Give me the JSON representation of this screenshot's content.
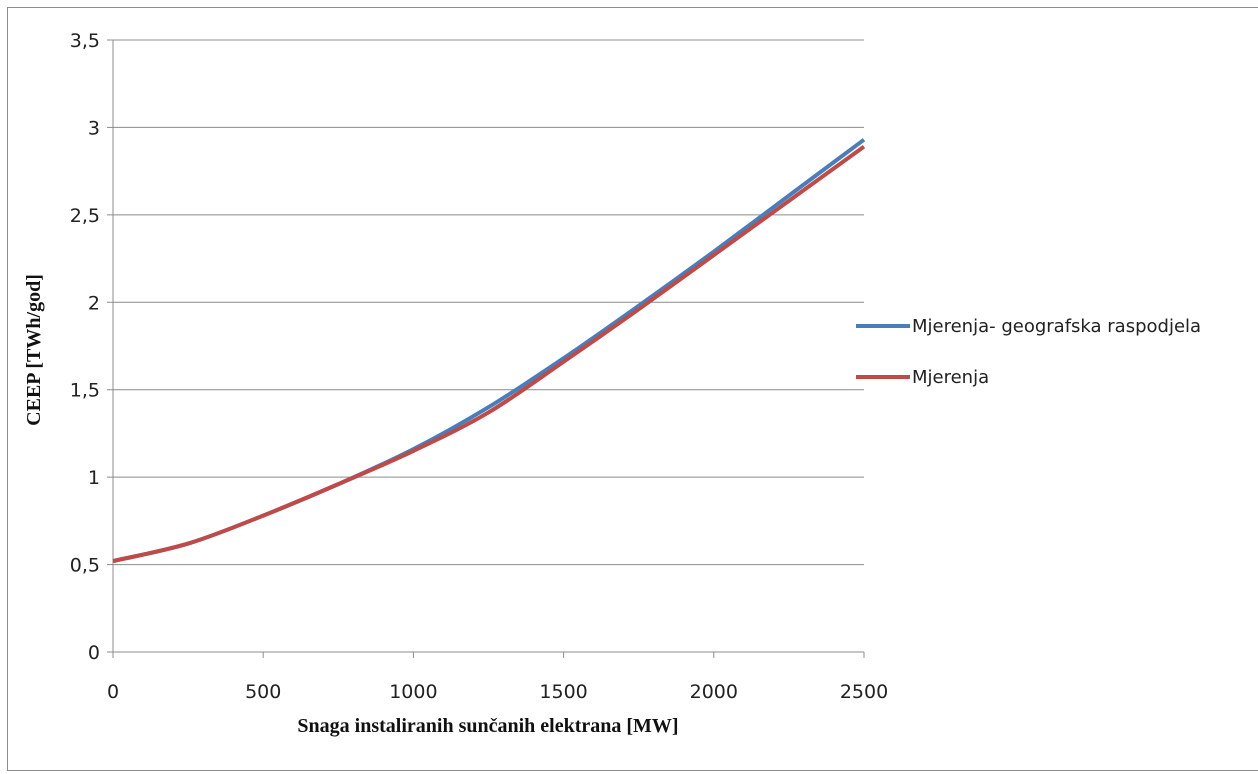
{
  "chart_data": {
    "type": "line",
    "title": "",
    "xlabel": "Snaga instaliranih  sunčanih elektrana [MW]",
    "ylabel": "CEEP [TWh/god]",
    "xlim": [
      0,
      2500
    ],
    "ylim": [
      0,
      3.5
    ],
    "x_ticks": [
      "0",
      "500",
      "1000",
      "1500",
      "2000",
      "2500"
    ],
    "y_ticks": [
      "0",
      "0,5",
      "1",
      "1,5",
      "2",
      "2,5",
      "3",
      "3,5"
    ],
    "grid": "horizontal",
    "legend_position": "right",
    "series": [
      {
        "name": "Mjerenja- geografska raspodjela",
        "color": "#4a7ebb",
        "x": [
          0,
          250,
          500,
          750,
          1000,
          1250,
          1500,
          1750,
          2000,
          2250,
          2500
        ],
        "y": [
          0.52,
          0.62,
          0.78,
          0.96,
          1.16,
          1.4,
          1.68,
          1.98,
          2.29,
          2.61,
          2.93
        ]
      },
      {
        "name": "Mjerenja",
        "color": "#be4b48",
        "x": [
          0,
          250,
          500,
          750,
          1000,
          1250,
          1500,
          1750,
          2000,
          2250,
          2500
        ],
        "y": [
          0.52,
          0.62,
          0.78,
          0.96,
          1.15,
          1.37,
          1.66,
          1.96,
          2.27,
          2.58,
          2.89
        ]
      }
    ]
  }
}
